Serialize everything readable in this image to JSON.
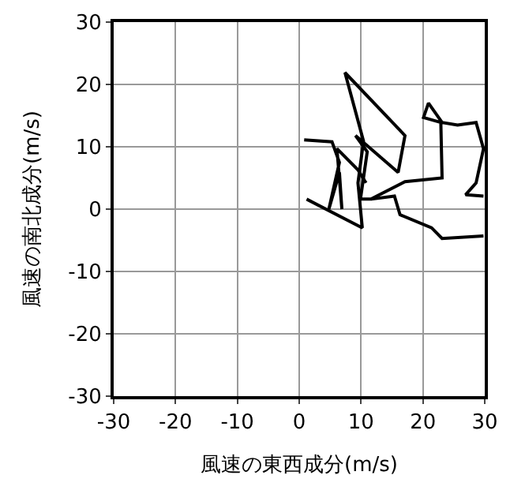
{
  "chart_data": {
    "type": "line",
    "xlabel": "風速の東西成分(m/s)",
    "ylabel": "風速の南北成分(m/s)",
    "xlim": [
      -30,
      30
    ],
    "ylim": [
      -30,
      30
    ],
    "xticks": [
      -30,
      -20,
      -10,
      0,
      10,
      20,
      30
    ],
    "yticks": [
      -30,
      -20,
      -10,
      0,
      10,
      20,
      30
    ],
    "grid": true,
    "legend": false,
    "marker": "none",
    "line_style": "solid",
    "series": [
      {
        "color": "#000000",
        "x": [
          1.2,
          10.2,
          9.5,
          10.4,
          7.4,
          17.1,
          16.0,
          9.1,
          11.0,
          9.9,
          11.6,
          17.1,
          23.1,
          22.9,
          20.1,
          20.9,
          23.1,
          25.6,
          28.6,
          29.8,
          28.6,
          26.9,
          29.8
        ],
        "values": [
          1.6,
          -3.0,
          4.2,
          10.9,
          21.9,
          11.8,
          5.9,
          11.8,
          9.2,
          1.6,
          1.6,
          4.4,
          5.0,
          13.9,
          14.7,
          17.0,
          13.9,
          13.5,
          13.9,
          9.7,
          4.2,
          2.3,
          2.1
        ]
      },
      {
        "color": "#000000",
        "x": [
          11.6,
          15.4,
          16.3,
          21.4,
          23.1,
          29.8
        ],
        "values": [
          1.6,
          2.1,
          -0.9,
          -3.0,
          -4.7,
          -4.3
        ]
      },
      {
        "color": "#000000",
        "x": [
          0.8,
          5.3,
          6.5,
          4.8,
          6.5,
          6.9,
          6.1,
          9.5,
          10.8
        ],
        "values": [
          11.1,
          10.8,
          7.5,
          0,
          5.9,
          0,
          9.7,
          6.3,
          4.2
        ]
      }
    ]
  }
}
